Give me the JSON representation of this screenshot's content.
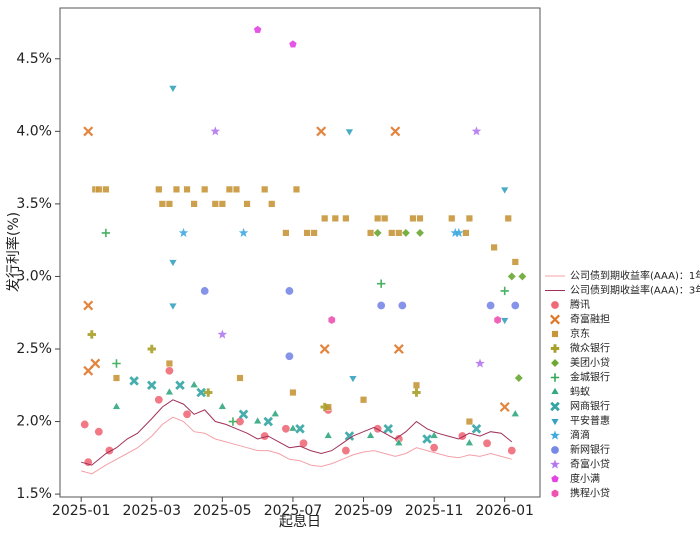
{
  "chart_data": {
    "type": "scatter",
    "x_label": "起息日",
    "y_label": "发行利率(%)",
    "xlim": [
      -0.6,
      13
    ],
    "ylim": [
      1.48,
      4.85
    ],
    "xticks": [
      {
        "value": 0,
        "label": "2025-01"
      },
      {
        "value": 2,
        "label": "2025-03"
      },
      {
        "value": 4,
        "label": "2025-05"
      },
      {
        "value": 6,
        "label": "2025-07"
      },
      {
        "value": 8,
        "label": "2025-09"
      },
      {
        "value": 10,
        "label": "2025-11"
      },
      {
        "value": 12,
        "label": "2026-01"
      }
    ],
    "yticks": [
      {
        "value": 1.5,
        "label": "1.5%"
      },
      {
        "value": 2,
        "label": "2.0%"
      },
      {
        "value": 2.5,
        "label": "2.5%"
      },
      {
        "value": 3,
        "label": "3.0%"
      },
      {
        "value": 3.5,
        "label": "3.5%"
      },
      {
        "value": 4,
        "label": "4.0%"
      },
      {
        "value": 4.5,
        "label": "4.5%"
      }
    ],
    "grid": false,
    "legend": "right",
    "lines": [
      {
        "name": "公司债到期收益率(AAA)：1年",
        "color": "#f4a0a8",
        "x": [
          0,
          0.3,
          0.7,
          1.0,
          1.3,
          1.6,
          2.0,
          2.3,
          2.6,
          2.9,
          3.2,
          3.5,
          3.8,
          4.1,
          4.4,
          4.7,
          5.0,
          5.3,
          5.6,
          5.9,
          6.2,
          6.5,
          6.8,
          7.1,
          7.4,
          7.7,
          8.0,
          8.3,
          8.6,
          8.9,
          9.2,
          9.5,
          9.8,
          10.1,
          10.4,
          10.7,
          11.0,
          11.3,
          11.6,
          11.9,
          12.2
        ],
        "values": [
          1.66,
          1.64,
          1.7,
          1.74,
          1.78,
          1.82,
          1.9,
          1.98,
          2.03,
          2.0,
          1.93,
          1.92,
          1.88,
          1.86,
          1.84,
          1.82,
          1.8,
          1.8,
          1.78,
          1.74,
          1.73,
          1.7,
          1.69,
          1.71,
          1.74,
          1.77,
          1.79,
          1.8,
          1.78,
          1.76,
          1.78,
          1.82,
          1.8,
          1.78,
          1.76,
          1.75,
          1.77,
          1.76,
          1.78,
          1.76,
          1.74
        ]
      },
      {
        "name": "公司债到期收益率(AAA)：3年",
        "color": "#a0325a",
        "x": [
          0,
          0.3,
          0.7,
          1.0,
          1.3,
          1.6,
          2.0,
          2.3,
          2.6,
          2.9,
          3.2,
          3.5,
          3.8,
          4.1,
          4.4,
          4.7,
          5.0,
          5.3,
          5.6,
          5.9,
          6.2,
          6.5,
          6.8,
          7.1,
          7.4,
          7.7,
          8.0,
          8.3,
          8.6,
          8.9,
          9.2,
          9.5,
          9.8,
          10.1,
          10.4,
          10.7,
          11.0,
          11.3,
          11.6,
          11.9,
          12.2
        ],
        "values": [
          1.72,
          1.7,
          1.78,
          1.82,
          1.88,
          1.92,
          2.02,
          2.1,
          2.15,
          2.12,
          2.05,
          2.08,
          2.0,
          1.98,
          1.95,
          1.92,
          1.88,
          1.9,
          1.86,
          1.82,
          1.83,
          1.8,
          1.78,
          1.8,
          1.85,
          1.9,
          1.93,
          1.96,
          1.92,
          1.88,
          1.93,
          2.0,
          1.95,
          1.92,
          1.9,
          1.88,
          1.92,
          1.9,
          1.93,
          1.92,
          1.86
        ]
      }
    ],
    "series": [
      {
        "name": "腾讯",
        "color": "#f06a78",
        "marker": "o",
        "x": [
          0.1,
          0.2,
          0.5,
          0.8,
          2.2,
          2.5,
          3.0,
          4.5,
          5.2,
          5.8,
          6.3,
          7.0,
          7.5,
          8.4,
          9.0,
          10.0,
          10.8,
          11.5,
          12.2
        ],
        "values": [
          1.98,
          1.72,
          1.93,
          1.8,
          2.15,
          2.35,
          2.05,
          2.0,
          1.9,
          1.95,
          1.85,
          2.08,
          1.8,
          1.95,
          1.88,
          1.82,
          1.9,
          1.85,
          1.8
        ]
      },
      {
        "name": "奇富融担",
        "color": "#e0782a",
        "marker": "x",
        "x": [
          0.2,
          0.2,
          0.2,
          0.4,
          6.8,
          6.9,
          8.9,
          9.0,
          12.0
        ],
        "values": [
          4.0,
          2.8,
          2.35,
          2.4,
          4.0,
          2.5,
          4.0,
          2.5,
          2.1
        ]
      },
      {
        "name": "京东",
        "color": "#c8963a",
        "marker": "s",
        "x": [
          0.4,
          0.5,
          0.7,
          2.2,
          2.3,
          2.5,
          2.7,
          3.0,
          3.2,
          3.5,
          3.8,
          4.0,
          4.2,
          4.4,
          4.7,
          5.2,
          5.4,
          5.8,
          6.1,
          6.4,
          6.6,
          6.9,
          7.2,
          7.5,
          8.2,
          8.4,
          8.6,
          8.8,
          9.0,
          9.4,
          9.6,
          10.5,
          10.9,
          11.0,
          11.7,
          12.1,
          12.3,
          1.0,
          2.5,
          4.5,
          6.0,
          7.0,
          8.0,
          9.5,
          11.0
        ],
        "values": [
          3.6,
          3.6,
          3.6,
          3.6,
          3.5,
          3.5,
          3.6,
          3.6,
          3.5,
          3.6,
          3.5,
          3.5,
          3.6,
          3.6,
          3.5,
          3.6,
          3.5,
          3.3,
          3.6,
          3.3,
          3.3,
          3.4,
          3.4,
          3.4,
          3.3,
          3.4,
          3.4,
          3.3,
          3.3,
          3.4,
          3.4,
          3.4,
          3.3,
          3.4,
          3.2,
          3.4,
          3.1,
          2.3,
          2.4,
          2.3,
          2.2,
          2.1,
          2.15,
          2.25,
          2.0
        ]
      },
      {
        "name": "微众银行",
        "color": "#a8a028",
        "marker": "P",
        "x": [
          0.3,
          2.0,
          3.6,
          6.9,
          9.5
        ],
        "values": [
          2.6,
          2.5,
          2.2,
          2.1,
          2.2
        ]
      },
      {
        "name": "美团小贷",
        "color": "#6aa832",
        "marker": "D",
        "x": [
          8.4,
          9.2,
          9.6,
          12.2,
          12.5,
          12.4
        ],
        "values": [
          3.3,
          3.3,
          3.3,
          3.0,
          3.0,
          2.3
        ]
      },
      {
        "name": "金城银行",
        "color": "#34a854",
        "marker": "+",
        "x": [
          0.7,
          1.0,
          4.3,
          8.5,
          12.0
        ],
        "values": [
          3.3,
          2.4,
          2.0,
          2.95,
          2.9
        ]
      },
      {
        "name": "蚂蚁",
        "color": "#32a882",
        "marker": "^",
        "x": [
          1.0,
          2.5,
          3.2,
          4.0,
          5.0,
          5.5,
          6.0,
          7.0,
          8.2,
          9.0,
          10.0,
          11.0,
          12.3
        ],
        "values": [
          2.1,
          2.2,
          2.25,
          2.1,
          2.0,
          2.05,
          1.95,
          1.9,
          1.9,
          1.85,
          1.9,
          1.85,
          2.05
        ]
      },
      {
        "name": "网商银行",
        "color": "#34a4a4",
        "marker": "X",
        "x": [
          1.5,
          2.0,
          2.8,
          3.4,
          4.6,
          5.3,
          6.2,
          7.6,
          8.7,
          9.8,
          11.2
        ],
        "values": [
          2.28,
          2.25,
          2.25,
          2.2,
          2.05,
          2.0,
          1.95,
          1.9,
          1.95,
          1.88,
          1.95
        ]
      },
      {
        "name": "平安普惠",
        "color": "#36a2bf",
        "marker": "v",
        "x": [
          2.6,
          2.6,
          2.6,
          7.6,
          7.7,
          12.0,
          12.0
        ],
        "values": [
          4.3,
          3.1,
          2.8,
          4.0,
          2.3,
          3.6,
          2.7
        ]
      },
      {
        "name": "滴滴",
        "color": "#3eaae0",
        "marker": "*",
        "x": [
          2.9,
          4.6,
          10.6,
          10.7
        ],
        "values": [
          3.3,
          3.3,
          3.3,
          3.3
        ]
      },
      {
        "name": "新网银行",
        "color": "#7888e6",
        "marker": "o",
        "x": [
          3.5,
          5.9,
          5.9,
          8.5,
          9.1,
          11.6,
          12.3
        ],
        "values": [
          2.9,
          2.9,
          2.45,
          2.8,
          2.8,
          2.8,
          2.8
        ]
      },
      {
        "name": "奇富小贷",
        "color": "#b478f0",
        "marker": "*",
        "x": [
          3.8,
          4.0,
          11.2,
          11.3
        ],
        "values": [
          4.0,
          2.6,
          4.0,
          2.4
        ]
      },
      {
        "name": "度小满",
        "color": "#e444e4",
        "marker": "p",
        "x": [
          5.0,
          6.0
        ],
        "values": [
          4.7,
          4.6
        ]
      },
      {
        "name": "携程小贷",
        "color": "#f052b4",
        "marker": "h",
        "x": [
          7.1,
          11.8
        ],
        "values": [
          2.7,
          2.7
        ]
      }
    ]
  }
}
